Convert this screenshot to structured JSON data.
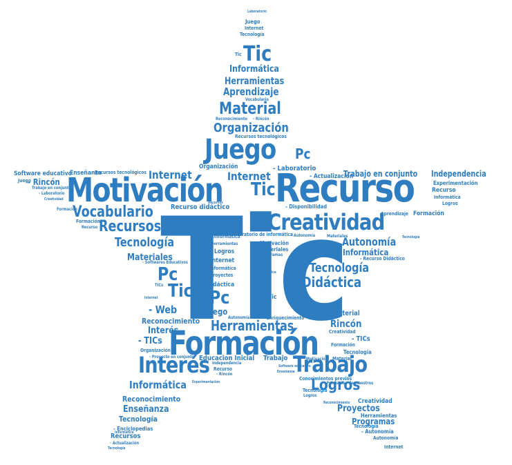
{
  "colors": {
    "primary": "#2f7dc1",
    "secondary": "#3b8ccc",
    "dark": "#2a6fae",
    "background": "#ffffff"
  },
  "words": {
    "tic_main": "Tic",
    "recurso": "Recurso",
    "motivacion": "Motivación",
    "formacion": "Formación",
    "creatividad": "Creatividad",
    "juego": "Juego",
    "trabajo": "Trabajo",
    "interes": "Interés",
    "logros": "Logros",
    "vocabulario": "Vocabulario",
    "recursos": "Recursos",
    "material": "Material",
    "organizacion": "Organización",
    "herramientas": "Herramientas",
    "tecnologia": "Tecnología",
    "didactica": "Didáctica",
    "autonomia": "Autonomía",
    "tic_top": "Tic",
    "tic_mid": "Tic",
    "tic_left": "Tic",
    "pc_left": "Pc",
    "pc_mid": "Pc",
    "pc_top": "Pc",
    "internet_left": "Internet",
    "internet_mid": "Internet",
    "informatica_top": "Informática",
    "informatica_right": "Informática",
    "informatica_bottom": "Informática",
    "aprendizaje": "Aprendizaje",
    "herramientas_top": "Herramientas",
    "independencia": "Independencia",
    "trabajo_en_conjunto": "Trabajo en conjunto",
    "materiales": "Materiales",
    "web": "- Web",
    "reconocimiento": "Reconocimiento",
    "reconocimiento_bottom": "Reconocimiento",
    "enseñanza": "Enseñanza",
    "tecnologia_bottom": "Tecnología",
    "proyectos": "Proyectos",
    "programas": "Programas",
    "rincon_right": "Rincón",
    "tics": "- TICs",
    "educacion_inicial": "Educacion Inicial",
    "recurso_didactico": "Recurso didáctico",
    "laboratorio": "- Laboratorio",
    "actualizacion": "- Actualización",
    "software_educativo": "Software educativo",
    "rincon_left": "- Rincón",
    "experimentacion": "Experimentación",
    "formacion_right": "Formación",
    "aprendizaje_right": "Aprendizaje",
    "juego_top": "Juego",
    "internet_top": "Internet",
    "tecnologia_top": "Tecnología",
    "vocabulario_top": "Vocabulario",
    "reconocimiento_top": "Reconocimiento",
    "rincon_top": "- Rincón",
    "recursos_tecnologicos": "Recursos tecnológicos",
    "enseñanza_left": "Enseñanza",
    "recursos_tecnologicos_left": "Recursos tecnológicos",
    "organizacion_small": "Organización",
    "laboratorio_small": "- Laboratorio",
    "disponibilidad": "- Disponibilidad",
    "motivacion_small": "Motivación",
    "materiales_small": "Materiales",
    "programas_small": "Programas",
    "logros_small": "Logros",
    "internet_small": "Internet",
    "informatica_small": "Informática",
    "proyectos_small": "Proyectos",
    "laboratorio_de_informatica": "Laboratorio de informática",
    "herramientas_small": "Herramientas",
    "logros_mid": "Logros",
    "informatica_mid": "Informática",
    "tecnologia_small_left": "Tecnología",
    "materiales_left": "Materiales",
    "recurso_didactico_right": "- Recurso Didáctico",
    "autonomia_right": "- Autonomía",
    "material_right": "Material",
    "rincon_bottom": "Rincón",
    "creatividad_small": "Creatividad",
    "tics_right": "- TICs",
    "formacion_small": "Formación",
    "tecnologia_small_right": "Tecnología",
    "juego_small": "Juego",
    "reconocimiento_small": "Reconocimiento",
    "organizacion_bottom": "Organización",
    "proyecto_en_conjunto": "- Proyecto en conjunto",
    "independencia_small": "Independencia",
    "recurso_small": "Recurso",
    "rincon_small": "- Rincón",
    "conocimientos_previos": "Conocimientos previos",
    "formacion_de_maestros": "- Formación de maestros",
    "tecnologia_b2": "Tecnología",
    "logros_b": "Logros",
    "creatividad_b": "Creatividad",
    "enciclopedias": "- Enciclopedias",
    "informatica_b": "Informática",
    "recursos_b": "Recursos",
    "actualizacion_b": "- Actualización",
    "tecnologia_b3": "Tecnología",
    "autonomia_b": "- Autonomía",
    "autonomia_b2": "Autonomía",
    "internet_b": "Internet",
    "herramientas_b": "Herramientas",
    "software_educativo_b": "Software educativo",
    "enseñanza_b": "Enseñanza",
    "recurso_b": "Recurso",
    "formacion_b": "Formación",
    "logros_r": "Logros",
    "informatica_r": "Informática",
    "experimentacion_r": "Experimentación",
    "trabajo_small": "Trabajo",
    "motivacion_b": "Motivación",
    "material_b": "Material",
    "didactica_small": "Didáctica",
    "tic_small": "Tic",
    "enriquecimiento": "- Enriquecimiento",
    "autonomia_small": "- Autonomía",
    "web_small": "- Web",
    "laboratorio_top": "Laboratorio",
    "tic_tiny": "Tic",
    "juego_left": "Juego",
    "trabajo_en_conjunto_left": "Trabajo en conjunto",
    "laboratorio_left": "- Laboratorio",
    "creatividad_left": "Creatividad",
    "formacion_left": "Formación",
    "recurso_left": "Recurso",
    "recursos_small": "Recursos",
    "informatica_left2": "Informática",
    "tics_left": "TICs",
    "internet_left2": "Internet",
    "interes_small": "Interés",
    "softwares_educativos": "- Softwares Educativos"
  }
}
